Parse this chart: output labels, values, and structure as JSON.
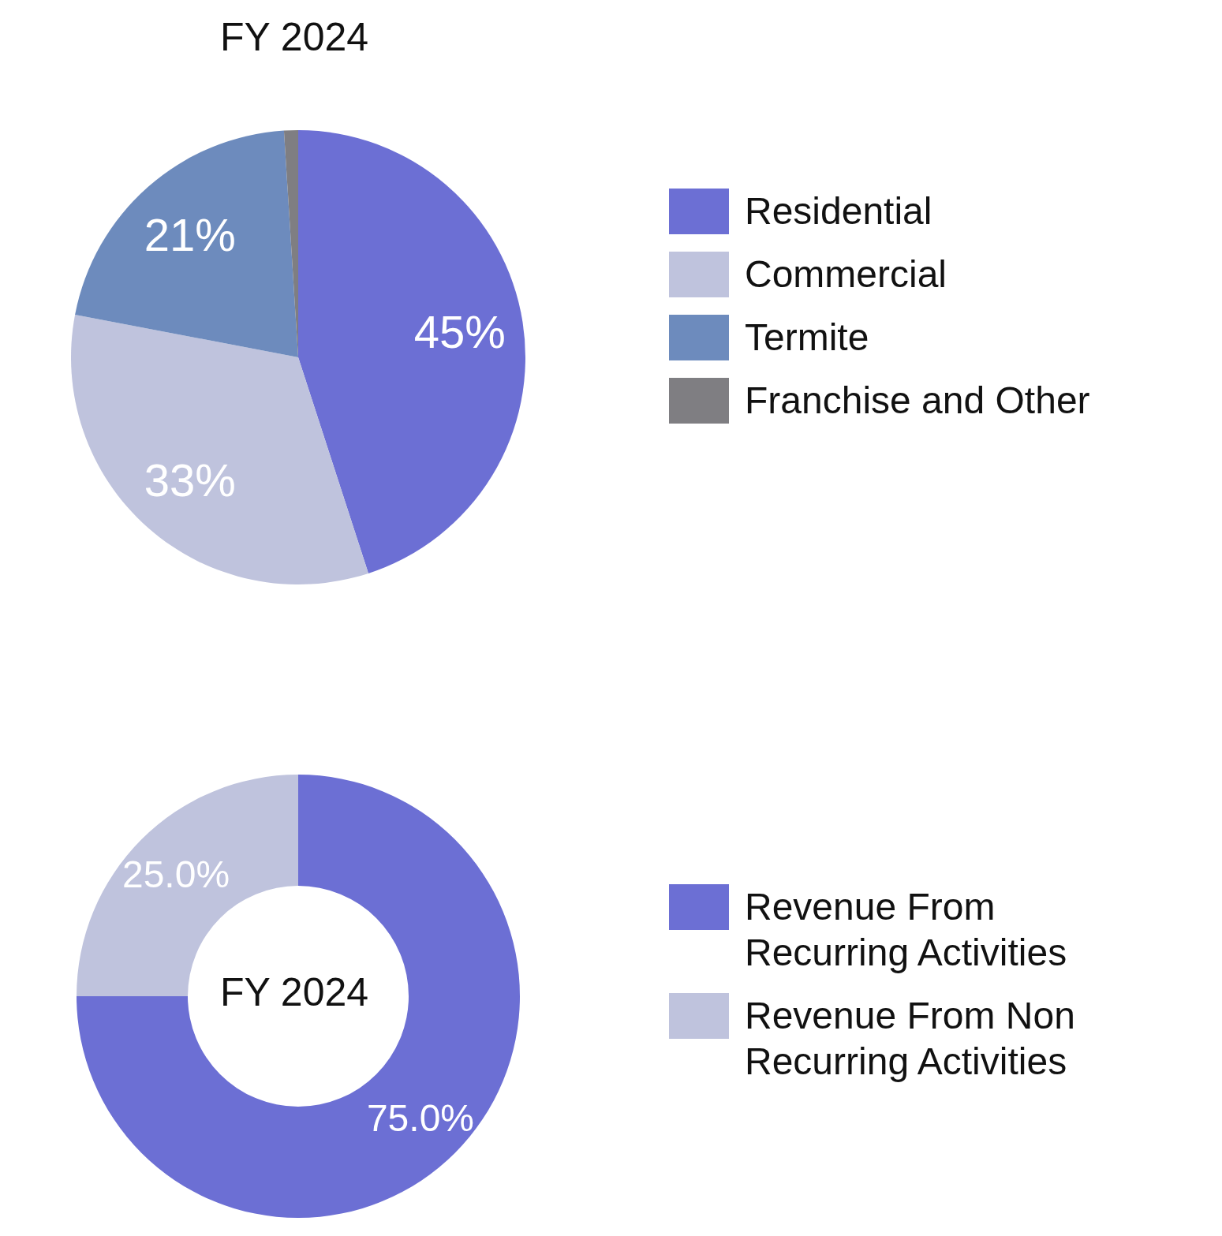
{
  "chart_data": [
    {
      "type": "pie",
      "title": "FY 2024",
      "categories": [
        "Residential",
        "Commercial",
        "Termite",
        "Franchise and Other"
      ],
      "values": [
        45,
        33,
        21,
        1
      ],
      "colors": [
        "#6c6fd4",
        "#bfc3dd",
        "#6d8bbd",
        "#7f7e82"
      ],
      "value_labels": [
        "45%",
        "33%",
        "21%",
        null
      ],
      "legend": "right"
    },
    {
      "type": "donut",
      "title": "FY 2024",
      "categories": [
        "Revenue From Recurring Activities",
        "Revenue From Non Recurring Activities"
      ],
      "values": [
        75.0,
        25.0
      ],
      "colors": [
        "#6c6fd4",
        "#bfc3dd"
      ],
      "value_labels": [
        "75.0%",
        "25.0%"
      ],
      "legend": "right"
    }
  ]
}
